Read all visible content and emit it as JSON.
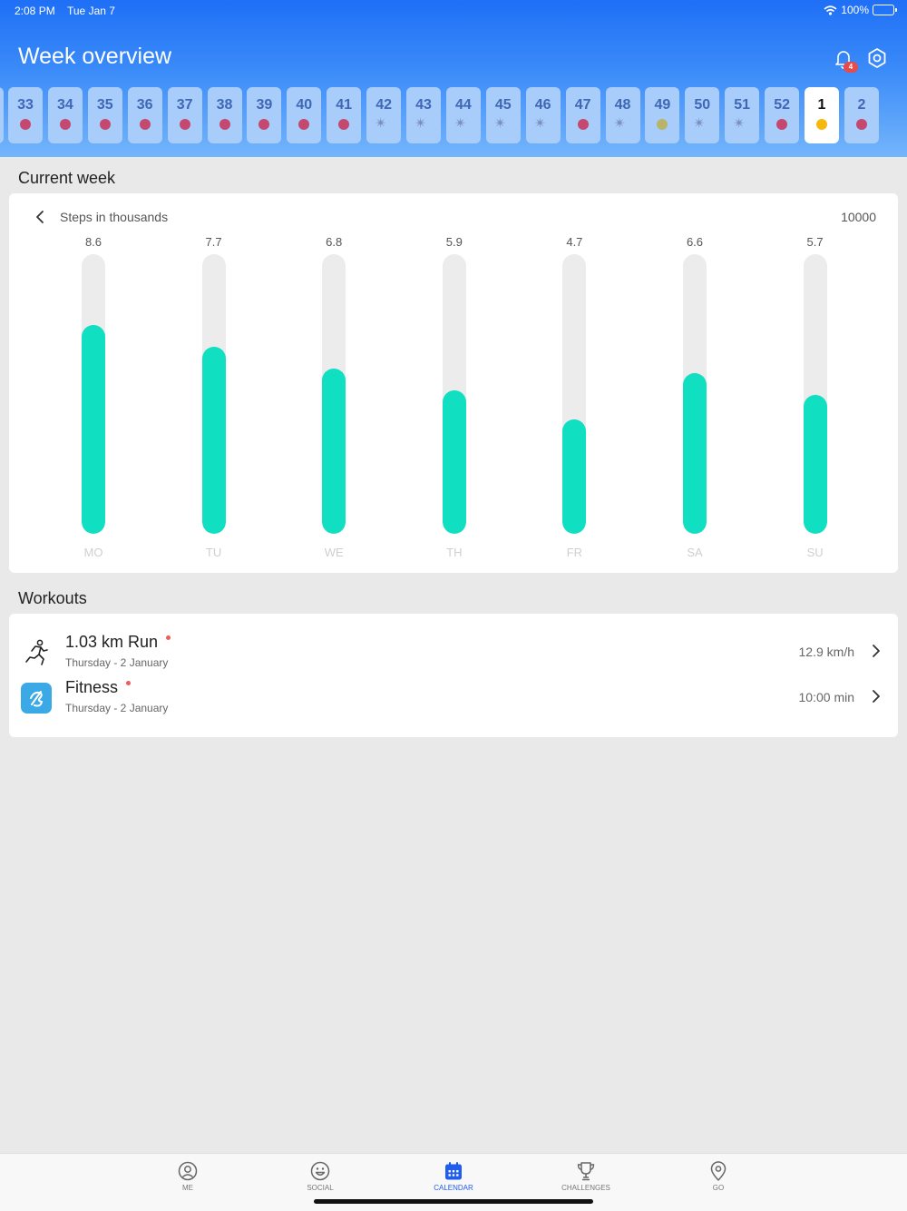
{
  "status_bar": {
    "time": "2:08 PM",
    "date": "Tue Jan 7",
    "battery": "100%"
  },
  "header": {
    "title": "Week overview",
    "notification_count": "4"
  },
  "weeks": [
    {
      "label": "33",
      "marker": "dot",
      "color": "#c5486f"
    },
    {
      "label": "34",
      "marker": "dot",
      "color": "#c5486f"
    },
    {
      "label": "35",
      "marker": "dot",
      "color": "#c5486f"
    },
    {
      "label": "36",
      "marker": "dot",
      "color": "#c5486f"
    },
    {
      "label": "37",
      "marker": "dot",
      "color": "#c5486f"
    },
    {
      "label": "38",
      "marker": "dot",
      "color": "#c5486f"
    },
    {
      "label": "39",
      "marker": "dot",
      "color": "#c5486f"
    },
    {
      "label": "40",
      "marker": "dot",
      "color": "#c5486f"
    },
    {
      "label": "41",
      "marker": "dot",
      "color": "#c5486f"
    },
    {
      "label": "42",
      "marker": "party"
    },
    {
      "label": "43",
      "marker": "party"
    },
    {
      "label": "44",
      "marker": "party"
    },
    {
      "label": "45",
      "marker": "party"
    },
    {
      "label": "46",
      "marker": "party"
    },
    {
      "label": "47",
      "marker": "dot",
      "color": "#c5486f"
    },
    {
      "label": "48",
      "marker": "party"
    },
    {
      "label": "49",
      "marker": "dot",
      "color": "#b8b46a"
    },
    {
      "label": "50",
      "marker": "party"
    },
    {
      "label": "51",
      "marker": "party"
    },
    {
      "label": "52",
      "marker": "dot",
      "color": "#c5486f"
    },
    {
      "label": "1",
      "marker": "dot",
      "color": "#f5b80c",
      "current": true
    },
    {
      "label": "2",
      "marker": "dot",
      "color": "#c5486f"
    }
  ],
  "current_week": {
    "section_title": "Current week",
    "steps_label": "Steps in thousands",
    "goal_label": "10000"
  },
  "chart_data": {
    "type": "bar",
    "title": "Steps in thousands",
    "categories": [
      "MO",
      "TU",
      "WE",
      "TH",
      "FR",
      "SA",
      "SU"
    ],
    "values": [
      8.6,
      7.7,
      6.8,
      5.9,
      4.7,
      6.6,
      5.7
    ],
    "value_labels": [
      "8.6",
      "7.7",
      "6.8",
      "5.9",
      "4.7",
      "6.6",
      "5.7"
    ],
    "ylim": [
      0,
      11.5
    ],
    "goal": "10000",
    "bar_color": "#10dfc1",
    "track_color": "#ececec"
  },
  "workouts": {
    "section_title": "Workouts",
    "items": [
      {
        "title": "1.03 km Run",
        "subtitle": "Thursday - 2 January",
        "metric": "12.9 km/h",
        "icon": "running-icon"
      },
      {
        "title": "Fitness",
        "subtitle": "Thursday - 2 January",
        "metric": "10:00 min",
        "icon": "fitness-app-icon"
      }
    ]
  },
  "tabs": [
    {
      "label": "ME",
      "icon": "profile-icon"
    },
    {
      "label": "SOCIAL",
      "icon": "smiley-icon"
    },
    {
      "label": "CALENDAR",
      "icon": "calendar-icon",
      "active": true
    },
    {
      "label": "CHALLENGES",
      "icon": "trophy-icon"
    },
    {
      "label": "GO",
      "icon": "location-pin-icon"
    }
  ],
  "colors": {
    "accent": "#1f5cf0",
    "header_top": "#1f6ff7",
    "header_bottom": "#74b5fb",
    "notification_badge": "#e84b4b",
    "workout_dot": "#f05b5b"
  }
}
